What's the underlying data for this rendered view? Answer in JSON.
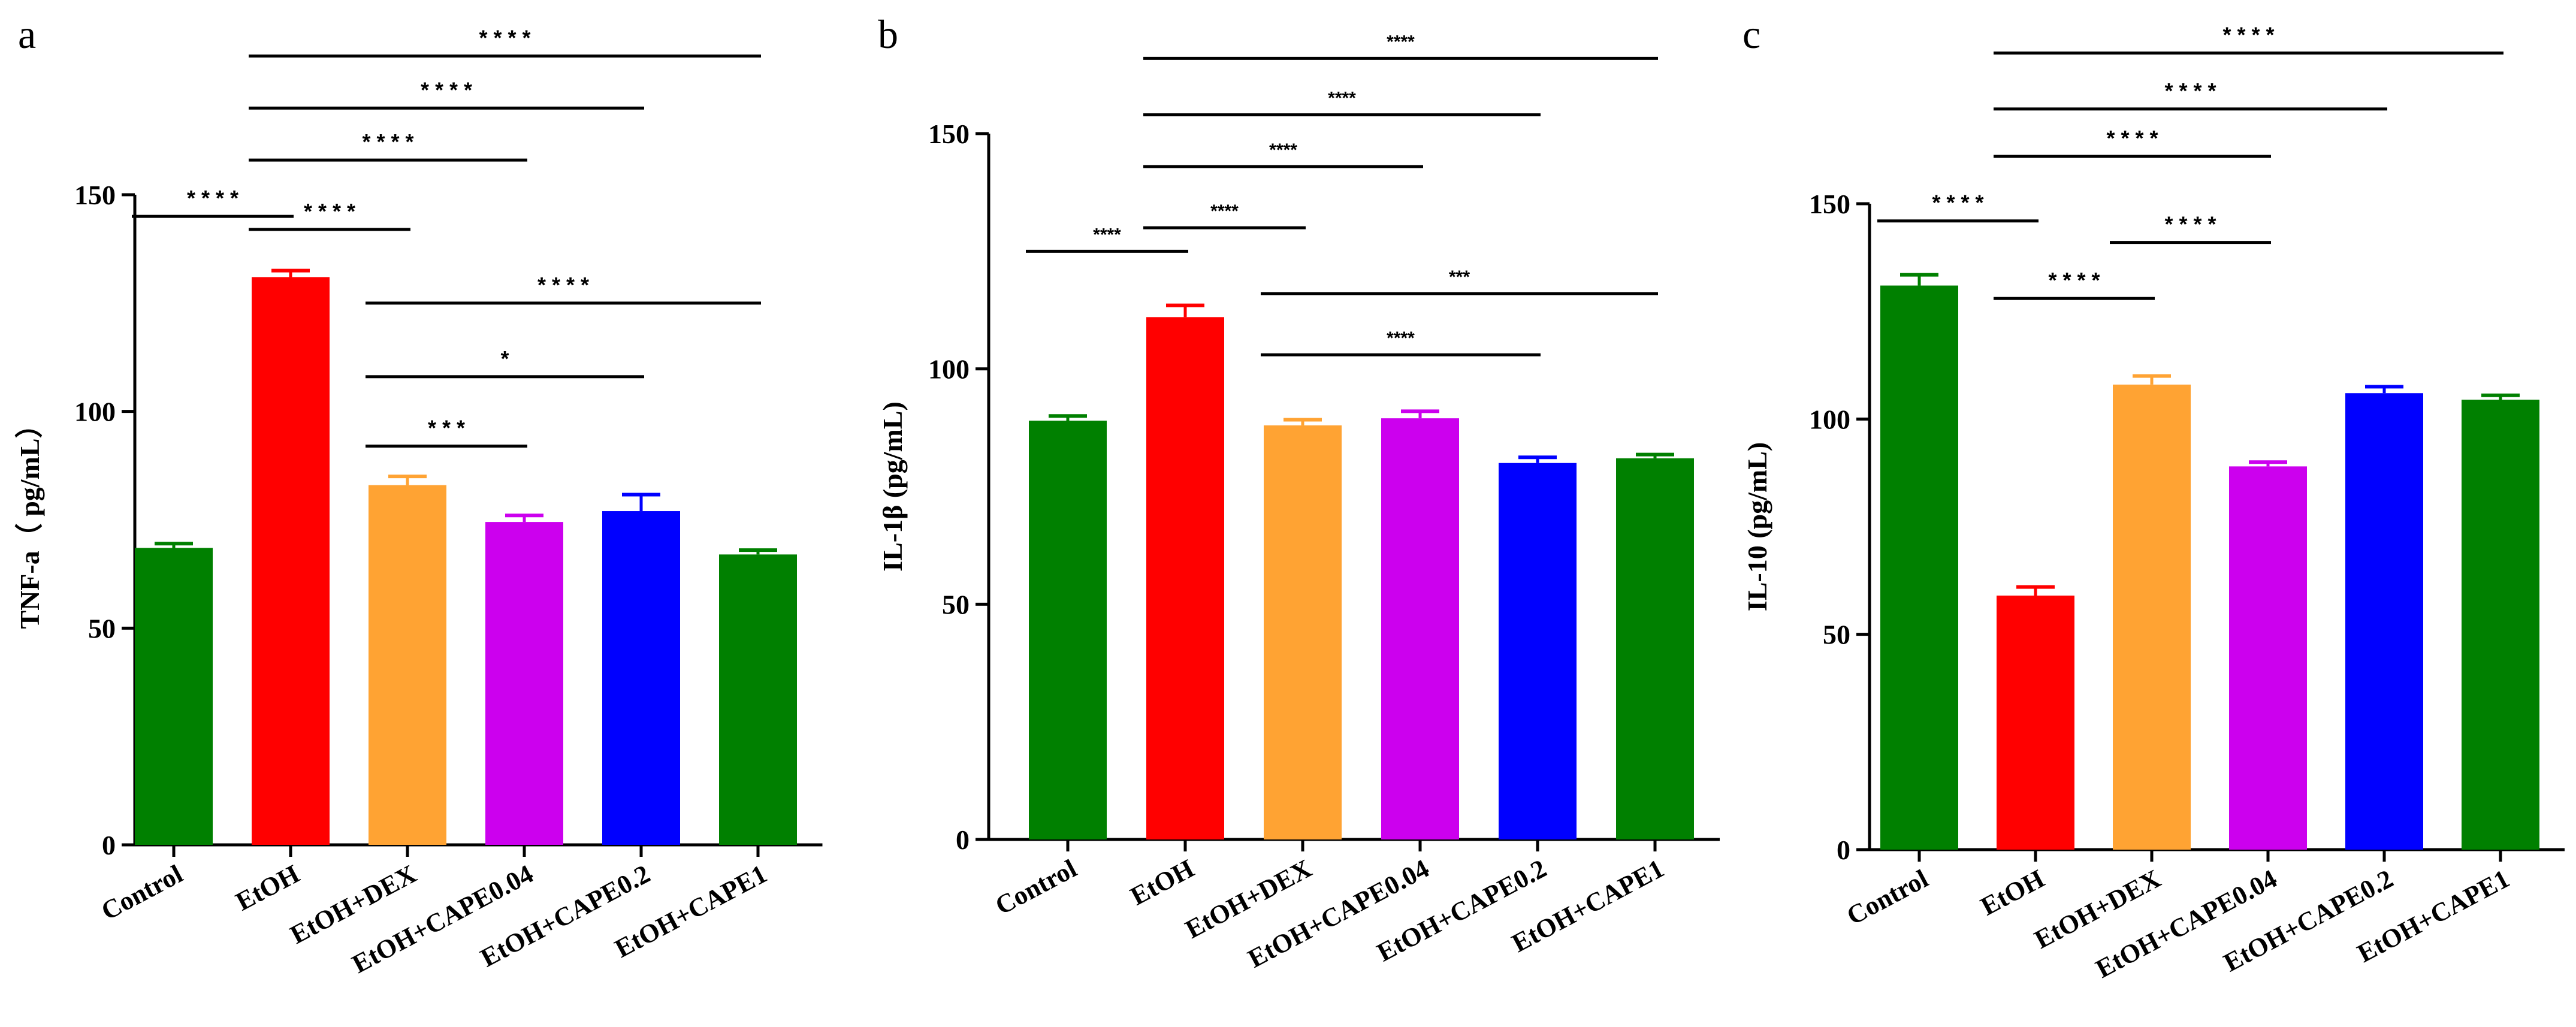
{
  "chart_data": [
    {
      "panel": "a",
      "type": "bar",
      "ylabel": "TNF-a（ pg/mL）",
      "ylim": [
        0,
        150
      ],
      "yticks": [
        0,
        50,
        100,
        150
      ],
      "categories": [
        "Control",
        "EtOH",
        "EtOH+DEX",
        "EtOH+CAPE0.04",
        "EtOH+CAPE0.2",
        "EtOH+CAPE1"
      ],
      "values": [
        68.5,
        131,
        83,
        74.5,
        77,
        67
      ],
      "errors": [
        1.0,
        1.5,
        2.0,
        1.5,
        3.8,
        1.0
      ],
      "colors": [
        "#008000",
        "#ff0000",
        "#ffa333",
        "#cc00ee",
        "#0000ff",
        "#008000"
      ],
      "significance": [
        {
          "from": 0,
          "to": 1,
          "label": "* * * *",
          "level": 145
        },
        {
          "from": 1,
          "to": 2,
          "label": "* * * *",
          "level": 142
        },
        {
          "from": 1,
          "to": 3,
          "label": "* * * *",
          "level": 158
        },
        {
          "from": 1,
          "to": 4,
          "label": "* * * *",
          "level": 170
        },
        {
          "from": 1,
          "to": 5,
          "label": "* * * *",
          "level": 182
        },
        {
          "from": 2,
          "to": 3,
          "label": "* * *",
          "level": 92
        },
        {
          "from": 2,
          "to": 4,
          "label": "*",
          "level": 108
        },
        {
          "from": 2,
          "to": 5,
          "label": "* * * *",
          "level": 125
        }
      ]
    },
    {
      "panel": "b",
      "type": "bar",
      "ylabel": "IL-1β (pg/mL)",
      "ylim": [
        0,
        150
      ],
      "yticks": [
        0,
        50,
        100,
        150
      ],
      "categories": [
        "Control",
        "EtOH",
        "EtOH+DEX",
        "EtOH+CAPE0.04",
        "EtOH+CAPE0.2",
        "EtOH+CAPE1"
      ],
      "values": [
        89,
        111,
        88,
        89.5,
        80,
        81
      ],
      "errors": [
        1.0,
        2.5,
        1.2,
        1.5,
        1.2,
        0.8
      ],
      "colors": [
        "#008000",
        "#ff0000",
        "#ffa333",
        "#cc00ee",
        "#0000ff",
        "#008000"
      ],
      "significance": [
        {
          "from": 0,
          "to": 1,
          "label": "****",
          "level": 125
        },
        {
          "from": 1,
          "to": 2,
          "label": "****",
          "level": 130
        },
        {
          "from": 1,
          "to": 3,
          "label": "****",
          "level": 143
        },
        {
          "from": 1,
          "to": 4,
          "label": "****",
          "level": 154
        },
        {
          "from": 1,
          "to": 5,
          "label": "****",
          "level": 166
        },
        {
          "from": 2,
          "to": 4,
          "label": "****",
          "level": 103
        },
        {
          "from": 2,
          "to": 5,
          "label": "***",
          "level": 116
        }
      ]
    },
    {
      "panel": "c",
      "type": "bar",
      "ylabel": "IL-10 (pg/mL)",
      "ylim": [
        0,
        150
      ],
      "yticks": [
        0,
        50,
        100,
        150
      ],
      "categories": [
        "Control",
        "EtOH",
        "EtOH+DEX",
        "EtOH+CAPE0.04",
        "EtOH+CAPE0.2",
        "EtOH+CAPE1"
      ],
      "values": [
        131,
        59,
        108,
        89,
        106,
        104.5
      ],
      "errors": [
        2.5,
        2.0,
        2.0,
        1.0,
        1.5,
        1.0
      ],
      "colors": [
        "#008000",
        "#ff0000",
        "#ffa333",
        "#cc00ee",
        "#0000ff",
        "#008000"
      ],
      "significance": [
        {
          "from": 0,
          "to": 1,
          "label": "* * * *",
          "level": 146
        },
        {
          "from": 1,
          "to": 2,
          "label": "* * * *",
          "level": 128
        },
        {
          "from": 2,
          "to": 3,
          "label": "* * * *",
          "level": 141
        },
        {
          "from": 1,
          "to": 3,
          "label": "* * * *",
          "level": 161
        },
        {
          "from": 1,
          "to": 4,
          "label": "* * * *",
          "level": 172
        },
        {
          "from": 1,
          "to": 5,
          "label": "* * * *",
          "level": 185
        }
      ]
    }
  ]
}
